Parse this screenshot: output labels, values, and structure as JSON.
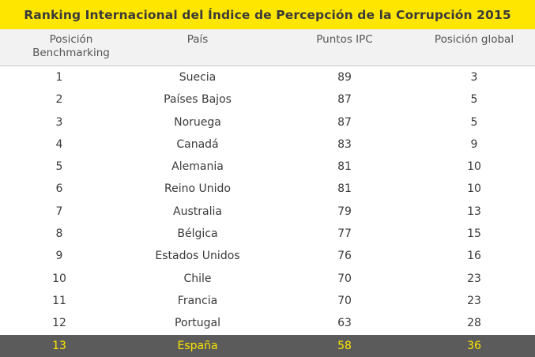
{
  "title": "Ranking Internacional del Índice de Percepción de la Corrupción 2015",
  "headers": {
    "position_line1": "Posición",
    "position_line2": "Benchmarking",
    "country": "País",
    "points": "Puntos IPC",
    "global": "Posición global"
  },
  "rows": [
    {
      "pos": "1",
      "country": "Suecia",
      "points": "89",
      "global": "3"
    },
    {
      "pos": "2",
      "country": "Países Bajos",
      "points": "87",
      "global": "5"
    },
    {
      "pos": "3",
      "country": "Noruega",
      "points": "87",
      "global": "5"
    },
    {
      "pos": "4",
      "country": "Canadá",
      "points": "83",
      "global": "9"
    },
    {
      "pos": "5",
      "country": "Alemania",
      "points": "81",
      "global": "10"
    },
    {
      "pos": "6",
      "country": "Reino Unido",
      "points": "81",
      "global": "10"
    },
    {
      "pos": "7",
      "country": "Australia",
      "points": "79",
      "global": "13"
    },
    {
      "pos": "8",
      "country": "Bélgica",
      "points": "77",
      "global": "15"
    },
    {
      "pos": "9",
      "country": "Estados Unidos",
      "points": "76",
      "global": "16"
    },
    {
      "pos": "10",
      "country": "Chile",
      "points": "70",
      "global": "23"
    },
    {
      "pos": "11",
      "country": "Francia",
      "points": "70",
      "global": "23"
    },
    {
      "pos": "12",
      "country": "Portugal",
      "points": "63",
      "global": "28"
    },
    {
      "pos": "13",
      "country": "España",
      "points": "58",
      "global": "36"
    }
  ],
  "colors": {
    "title_bg": "#ffe600",
    "highlight_bg": "#5b5b5b",
    "highlight_text": "#ffe600"
  }
}
